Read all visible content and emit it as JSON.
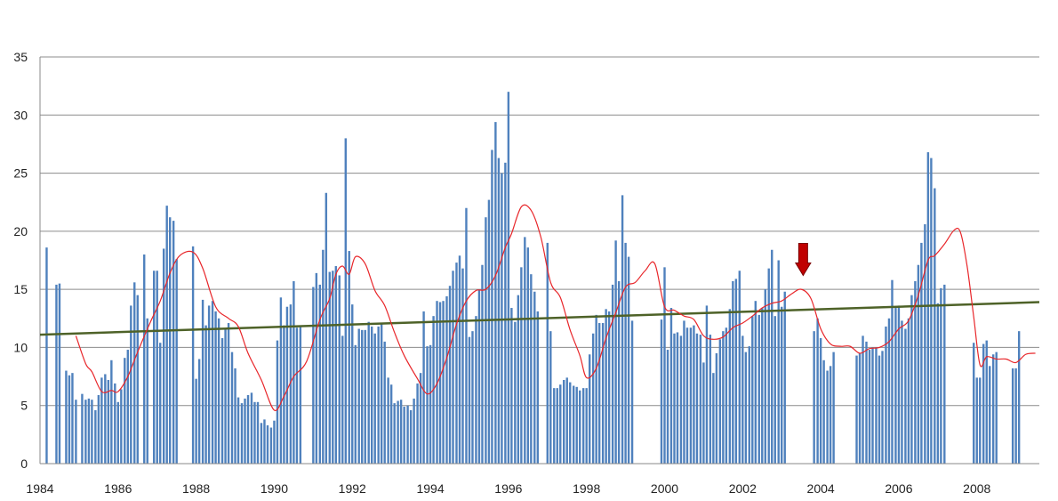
{
  "chart_data": {
    "type": "bar",
    "title": "",
    "xlabel": "",
    "ylabel": "",
    "xlim": [
      1984,
      2009.6
    ],
    "ylim": [
      0,
      35
    ],
    "y_ticks": [
      0,
      5,
      10,
      15,
      20,
      25,
      30,
      35
    ],
    "x_ticks": [
      "1984",
      "1986",
      "1988",
      "1990",
      "1992",
      "1994",
      "1996",
      "1998",
      "2000",
      "2002",
      "2004",
      "2006",
      "2008"
    ],
    "x_tick_values": [
      1984,
      1986,
      1988,
      1990,
      1992,
      1994,
      1996,
      1998,
      2000,
      2002,
      2004,
      2006,
      2008
    ],
    "grid": "horizontal",
    "legend": "none",
    "colors": {
      "bars": "#4f81bd",
      "moving_average": "#e8262a",
      "trend": "#4e6228",
      "arrow": "#c00000"
    },
    "bars": {
      "x": [
        1984.17,
        1984.42,
        1984.5,
        1984.67,
        1984.75,
        1984.83,
        1984.92,
        1985.08,
        1985.17,
        1985.25,
        1985.33,
        1985.42,
        1985.5,
        1985.58,
        1985.67,
        1985.75,
        1985.83,
        1985.92,
        1986.0,
        1986.08,
        1986.17,
        1986.25,
        1986.33,
        1986.42,
        1986.5,
        1986.67,
        1986.75,
        1986.92,
        1987.0,
        1987.08,
        1987.17,
        1987.25,
        1987.33,
        1987.42,
        1987.5,
        1987.92,
        1988.0,
        1988.08,
        1988.17,
        1988.25,
        1988.33,
        1988.42,
        1988.5,
        1988.58,
        1988.67,
        1988.75,
        1988.83,
        1988.92,
        1989.0,
        1989.08,
        1989.17,
        1989.25,
        1989.33,
        1989.42,
        1989.5,
        1989.58,
        1989.67,
        1989.75,
        1989.83,
        1989.92,
        1990.0,
        1990.08,
        1990.17,
        1990.25,
        1990.33,
        1990.42,
        1990.5,
        1990.58,
        1990.67,
        1991.0,
        1991.08,
        1991.17,
        1991.25,
        1991.33,
        1991.42,
        1991.5,
        1991.58,
        1991.67,
        1991.75,
        1991.83,
        1991.92,
        1992.0,
        1992.08,
        1992.17,
        1992.25,
        1992.33,
        1992.42,
        1992.5,
        1992.58,
        1992.67,
        1992.75,
        1992.83,
        1992.92,
        1993.0,
        1993.08,
        1993.17,
        1993.25,
        1993.33,
        1993.42,
        1993.5,
        1993.58,
        1993.67,
        1993.75,
        1993.83,
        1993.92,
        1994.0,
        1994.08,
        1994.17,
        1994.25,
        1994.33,
        1994.42,
        1994.5,
        1994.58,
        1994.67,
        1994.75,
        1994.83,
        1994.92,
        1995.0,
        1995.08,
        1995.17,
        1995.25,
        1995.33,
        1995.42,
        1995.5,
        1995.58,
        1995.67,
        1995.75,
        1995.83,
        1995.92,
        1996.0,
        1996.08,
        1996.17,
        1996.25,
        1996.33,
        1996.42,
        1996.5,
        1996.58,
        1996.67,
        1996.75,
        1997.0,
        1997.08,
        1997.17,
        1997.25,
        1997.33,
        1997.42,
        1997.5,
        1997.58,
        1997.67,
        1997.75,
        1997.83,
        1997.92,
        1998.0,
        1998.08,
        1998.17,
        1998.25,
        1998.33,
        1998.42,
        1998.5,
        1998.58,
        1998.67,
        1998.75,
        1998.83,
        1998.92,
        1999.0,
        1999.08,
        1999.17,
        1999.92,
        2000.0,
        2000.08,
        2000.17,
        2000.25,
        2000.33,
        2000.42,
        2000.5,
        2000.58,
        2000.67,
        2000.75,
        2000.83,
        2000.92,
        2001.0,
        2001.08,
        2001.17,
        2001.25,
        2001.33,
        2001.42,
        2001.5,
        2001.58,
        2001.67,
        2001.75,
        2001.83,
        2001.92,
        2002.0,
        2002.08,
        2002.17,
        2002.25,
        2002.33,
        2002.42,
        2002.5,
        2002.58,
        2002.67,
        2002.75,
        2002.83,
        2002.92,
        2003.0,
        2003.08,
        2003.83,
        2003.92,
        2004.0,
        2004.08,
        2004.17,
        2004.25,
        2004.33,
        2004.92,
        2005.0,
        2005.08,
        2005.17,
        2005.25,
        2005.33,
        2005.42,
        2005.5,
        2005.58,
        2005.67,
        2005.75,
        2005.83,
        2005.92,
        2006.0,
        2006.08,
        2006.17,
        2006.25,
        2006.33,
        2006.42,
        2006.5,
        2006.58,
        2006.67,
        2006.75,
        2006.83,
        2006.92,
        2007.0,
        2007.08,
        2007.17,
        2007.92,
        2008.0,
        2008.08,
        2008.17,
        2008.25,
        2008.33,
        2008.42,
        2008.5,
        2008.92,
        2009.0,
        2009.08
      ],
      "values": [
        18.6,
        15.4,
        15.5,
        8.0,
        7.6,
        7.8,
        5.5,
        6.0,
        5.5,
        5.6,
        5.5,
        4.6,
        5.9,
        7.4,
        7.7,
        7.2,
        8.9,
        6.9,
        5.3,
        6.4,
        9.1,
        9.8,
        13.6,
        15.6,
        14.5,
        18.0,
        12.5,
        16.6,
        16.6,
        10.4,
        18.5,
        22.2,
        21.2,
        20.9,
        17.6,
        18.7,
        7.3,
        9.0,
        14.1,
        11.9,
        13.6,
        14.0,
        13.1,
        12.5,
        10.8,
        11.6,
        12.1,
        9.6,
        8.2,
        5.7,
        5.2,
        5.6,
        5.9,
        6.1,
        5.3,
        5.3,
        3.5,
        3.8,
        3.3,
        3.1,
        3.7,
        10.6,
        14.3,
        11.9,
        13.5,
        13.7,
        15.7,
        11.7,
        11.8,
        15.2,
        16.4,
        15.4,
        18.4,
        23.3,
        16.5,
        16.6,
        17.0,
        16.2,
        11.0,
        28.0,
        18.3,
        13.7,
        10.2,
        11.6,
        11.5,
        11.5,
        12.2,
        11.8,
        11.2,
        11.8,
        12.0,
        10.5,
        7.4,
        6.8,
        5.2,
        5.4,
        5.5,
        4.9,
        5.0,
        4.6,
        5.6,
        6.9,
        7.8,
        13.1,
        10.1,
        10.2,
        12.7,
        14.0,
        13.9,
        14.0,
        14.4,
        15.3,
        16.6,
        17.3,
        17.9,
        16.8,
        22.0,
        10.9,
        11.4,
        12.7,
        15.0,
        17.1,
        21.2,
        22.7,
        27.0,
        29.4,
        26.3,
        25.0,
        25.9,
        32.0,
        13.4,
        12.2,
        14.5,
        16.9,
        19.5,
        18.6,
        16.3,
        14.8,
        13.1,
        19.0,
        11.4,
        6.5,
        6.5,
        6.8,
        7.2,
        7.4,
        7.0,
        6.7,
        6.6,
        6.3,
        6.5,
        6.5,
        9.4,
        11.2,
        12.8,
        12.1,
        12.1,
        13.3,
        13.1,
        15.4,
        19.2,
        15.7,
        23.1,
        19.0,
        17.8,
        12.3,
        12.4,
        16.9,
        9.8,
        13.4,
        11.2,
        11.3,
        11.0,
        12.3,
        11.7,
        11.7,
        11.9,
        11.2,
        11.1,
        8.7,
        13.6,
        11.1,
        7.8,
        9.5,
        10.7,
        11.4,
        11.7,
        13.3,
        15.7,
        15.9,
        16.6,
        11.0,
        9.6,
        10.1,
        12.7,
        14.0,
        12.8,
        13.4,
        15.0,
        16.8,
        18.4,
        12.7,
        17.5,
        13.5,
        14.8,
        11.4,
        12.5,
        10.8,
        8.9,
        8.0,
        8.4,
        9.6,
        9.3,
        9.5,
        11.0,
        10.5,
        9.8,
        10.0,
        10.0,
        9.3,
        9.7,
        11.8,
        12.5,
        15.8,
        13.4,
        13.6,
        12.3,
        11.6,
        12.5,
        14.5,
        15.7,
        17.1,
        19.0,
        20.6,
        26.8,
        26.3,
        23.7,
        13.8,
        15.1,
        15.4,
        10.4,
        7.4,
        7.4,
        10.3,
        10.6,
        8.4,
        9.4,
        9.6,
        8.2,
        8.2,
        11.4
      ]
    },
    "moving_average": {
      "x": [
        1984.92,
        1985.17,
        1985.33,
        1985.58,
        1985.83,
        1986.0,
        1986.25,
        1986.5,
        1986.83,
        1987.08,
        1987.33,
        1987.58,
        1987.92,
        1988.17,
        1988.5,
        1988.83,
        1989.08,
        1989.33,
        1989.67,
        1990.0,
        1990.25,
        1990.5,
        1990.83,
        1991.17,
        1991.42,
        1991.58,
        1991.75,
        1991.92,
        1992.08,
        1992.33,
        1992.58,
        1992.83,
        1993.08,
        1993.33,
        1993.67,
        1993.92,
        1994.17,
        1994.42,
        1994.67,
        1994.92,
        1995.17,
        1995.42,
        1995.67,
        1995.92,
        1996.08,
        1996.33,
        1996.58,
        1996.83,
        1997.08,
        1997.33,
        1997.58,
        1997.83,
        1998.0,
        1998.25,
        1998.5,
        1998.75,
        1999.0,
        1999.25,
        1999.5,
        1999.75,
        2000.0,
        2000.25,
        2000.5,
        2000.75,
        2001.0,
        2001.25,
        2001.5,
        2001.75,
        2002.0,
        2002.25,
        2002.5,
        2002.75,
        2003.0,
        2003.25,
        2003.5,
        2003.75,
        2004.0,
        2004.25,
        2004.5,
        2004.75,
        2005.0,
        2005.25,
        2005.5,
        2005.75,
        2006.0,
        2006.25,
        2006.5,
        2006.75,
        2006.92,
        2007.17,
        2007.42,
        2007.58,
        2007.75,
        2007.92,
        2008.08,
        2008.25,
        2008.5,
        2008.75,
        2009.0,
        2009.25,
        2009.5
      ],
      "values": [
        11.0,
        8.6,
        7.9,
        6.2,
        6.3,
        6.2,
        7.5,
        9.6,
        12.2,
        14.0,
        16.4,
        17.9,
        18.2,
        16.8,
        13.5,
        12.5,
        11.8,
        9.5,
        7.2,
        4.6,
        5.8,
        7.5,
        8.8,
        12.4,
        14.2,
        16.3,
        17.0,
        16.3,
        17.8,
        17.2,
        14.9,
        13.6,
        11.3,
        9.3,
        7.3,
        6.0,
        6.9,
        9.1,
        12.0,
        14.0,
        14.9,
        15.0,
        16.2,
        18.6,
        19.8,
        22.1,
        21.8,
        19.5,
        15.6,
        14.3,
        11.5,
        9.3,
        7.4,
        8.2,
        10.8,
        13.0,
        15.2,
        15.6,
        16.6,
        17.2,
        13.5,
        13.2,
        12.7,
        12.4,
        11.0,
        10.7,
        10.9,
        11.7,
        12.1,
        12.7,
        13.4,
        13.8,
        14.0,
        14.6,
        15.0,
        14.2,
        11.6,
        10.3,
        10.1,
        10.1,
        9.5,
        9.9,
        10.0,
        10.5,
        11.6,
        12.3,
        14.5,
        17.5,
        17.9,
        18.9,
        20.1,
        19.9,
        17.0,
        12.6,
        8.5,
        9.2,
        9.0,
        9.0,
        8.7,
        9.4,
        9.5
      ]
    },
    "trend_line": {
      "x": [
        1984,
        2009.6
      ],
      "values": [
        11.1,
        13.9
      ]
    },
    "annotations": [
      {
        "type": "down-arrow",
        "x": 2003.55,
        "y": 16.2
      }
    ]
  }
}
